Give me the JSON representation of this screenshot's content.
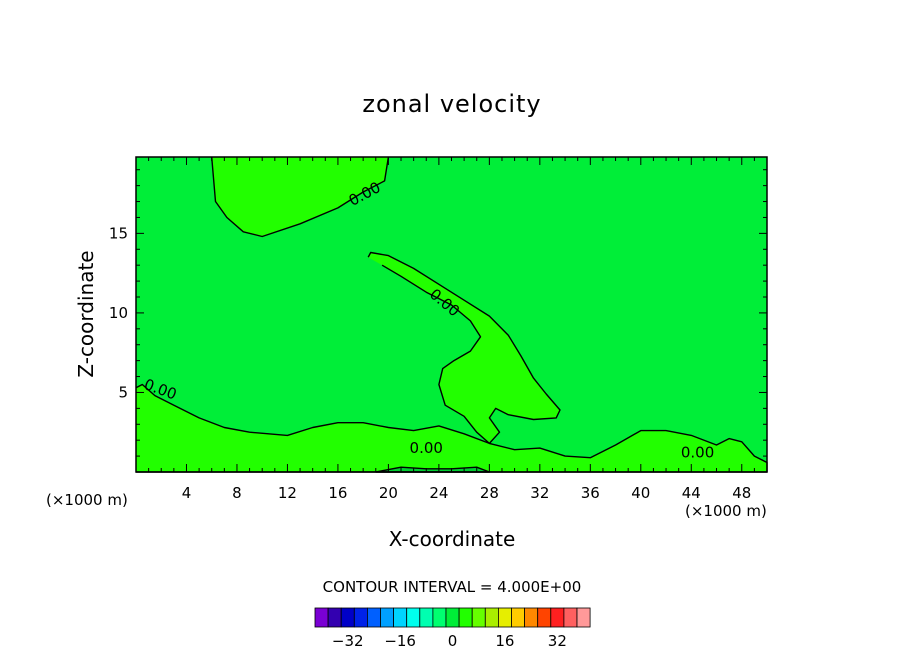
{
  "chart_data": {
    "type": "contour",
    "title": "zonal velocity",
    "xlabel": "X-coordinate",
    "ylabel": "Z-coordinate",
    "x_unit": "(×1000 m)",
    "x_unit_left": "(×1000 m)",
    "xlim": [
      0,
      50
    ],
    "ylim": [
      0,
      19.8
    ],
    "xticks": [
      4,
      8,
      12,
      16,
      20,
      24,
      28,
      32,
      36,
      40,
      44,
      48
    ],
    "yticks": [
      5,
      10,
      15
    ],
    "background_level_color": "#00ee38",
    "contour_interval_text": "CONTOUR INTERVAL = 4.000E+00",
    "contour_labels": [
      "0.00",
      "0.00",
      "0.00",
      "0.00",
      "0.00"
    ],
    "regions": [
      {
        "name": "upper-left-positive",
        "color": "#22ff00",
        "points": [
          [
            6,
            19.8
          ],
          [
            6.3,
            17
          ],
          [
            7.2,
            16
          ],
          [
            8.5,
            15.1
          ],
          [
            10,
            14.8
          ],
          [
            13,
            15.6
          ],
          [
            16,
            16.6
          ],
          [
            18,
            17.6
          ],
          [
            19.7,
            18.3
          ],
          [
            20,
            19.8
          ]
        ]
      },
      {
        "name": "middle-diagonal-positive",
        "color": "#22ff00",
        "points": [
          [
            18.4,
            13.5
          ],
          [
            18.6,
            13.8
          ],
          [
            20,
            13.6
          ],
          [
            22,
            12.8
          ],
          [
            24,
            11.8
          ],
          [
            26,
            10.8
          ],
          [
            28,
            9.8
          ],
          [
            29.5,
            8.6
          ],
          [
            30.5,
            7.3
          ],
          [
            31.5,
            5.9
          ],
          [
            32.5,
            4.9
          ],
          [
            33.6,
            3.9
          ],
          [
            33.3,
            3.4
          ],
          [
            31.5,
            3.3
          ],
          [
            29.5,
            3.6
          ],
          [
            28.5,
            4
          ],
          [
            28,
            3.4
          ],
          [
            28.8,
            2.5
          ],
          [
            28,
            1.8
          ],
          [
            27,
            2.5
          ],
          [
            26,
            3.5
          ],
          [
            24.5,
            4.2
          ],
          [
            24,
            5.5
          ],
          [
            24.3,
            6.5
          ],
          [
            25.2,
            7
          ],
          [
            26.5,
            7.6
          ],
          [
            27.3,
            8.5
          ],
          [
            26.5,
            9.5
          ],
          [
            25,
            10.5
          ],
          [
            23,
            11.3
          ],
          [
            21,
            12.3
          ],
          [
            19.5,
            13
          ]
        ]
      },
      {
        "name": "lower-positive-band",
        "color": "#22ff00",
        "points": [
          [
            0,
            5.3
          ],
          [
            0.5,
            5.5
          ],
          [
            1.5,
            4.8
          ],
          [
            3,
            4.2
          ],
          [
            5,
            3.4
          ],
          [
            7,
            2.8
          ],
          [
            9,
            2.5
          ],
          [
            12,
            2.3
          ],
          [
            14,
            2.8
          ],
          [
            16,
            3.1
          ],
          [
            18,
            3.1
          ],
          [
            20,
            2.8
          ],
          [
            22,
            2.6
          ],
          [
            24,
            2.9
          ],
          [
            26,
            2.4
          ],
          [
            28,
            1.8
          ],
          [
            30,
            1.4
          ],
          [
            32,
            1.5
          ],
          [
            34,
            1.0
          ],
          [
            36,
            0.9
          ],
          [
            38,
            1.7
          ],
          [
            40,
            2.6
          ],
          [
            42,
            2.6
          ],
          [
            44,
            2.3
          ],
          [
            46,
            1.7
          ],
          [
            47,
            2.1
          ],
          [
            48,
            1.9
          ],
          [
            49,
            1.0
          ],
          [
            50,
            0.6
          ],
          [
            50,
            0
          ],
          [
            0,
            0
          ]
        ]
      },
      {
        "name": "near-ground-dark-patch",
        "color": "#00cc30",
        "points": [
          [
            19,
            0
          ],
          [
            21,
            0.3
          ],
          [
            23,
            0.2
          ],
          [
            25,
            0.2
          ],
          [
            27,
            0.3
          ],
          [
            28,
            0
          ],
          [
            19,
            0
          ]
        ]
      }
    ],
    "colorbar": {
      "colors": [
        "#7a00d4",
        "#3300b0",
        "#0000c8",
        "#0022e8",
        "#0060ff",
        "#00a0ff",
        "#00d4ff",
        "#00ffee",
        "#00ffb0",
        "#00ff70",
        "#00ee38",
        "#22ff00",
        "#66ff00",
        "#aaee00",
        "#e6ee00",
        "#ffcc00",
        "#ff8800",
        "#ff4400",
        "#ff2020",
        "#ff6060",
        "#ff9999"
      ],
      "tick_labels": [
        "-32",
        "-16",
        "0",
        "16",
        "32"
      ],
      "tick_values": [
        -32,
        -16,
        0,
        16,
        32
      ]
    }
  }
}
